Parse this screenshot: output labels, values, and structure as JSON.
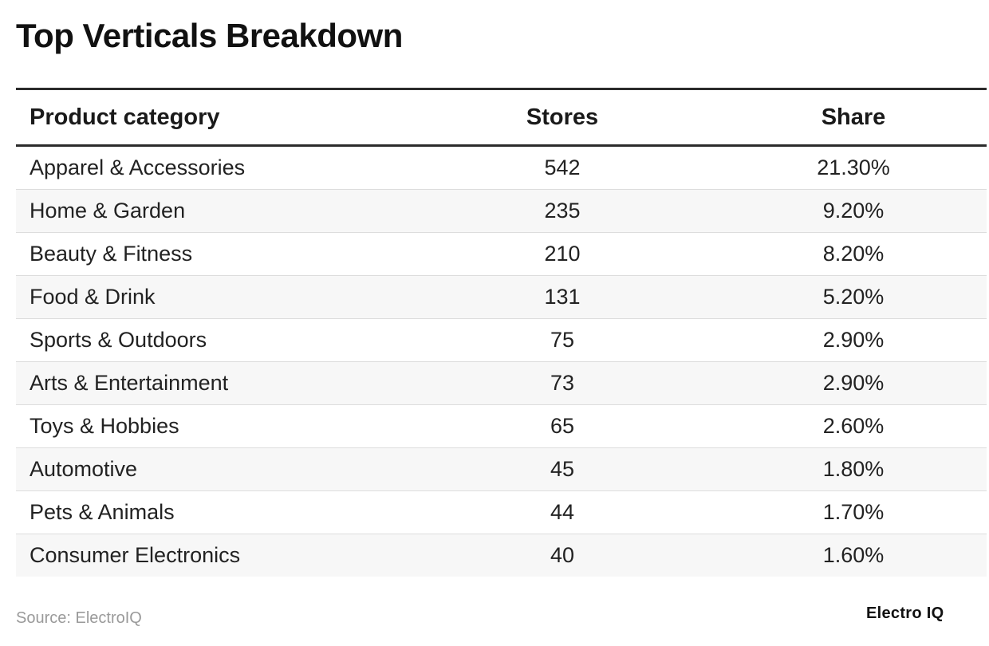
{
  "chart_data": {
    "type": "table",
    "title": "Top Verticals Breakdown",
    "columns": [
      "Product category",
      "Stores",
      "Share"
    ],
    "rows": [
      [
        "Apparel & Accessories",
        "542",
        "21.30%"
      ],
      [
        "Home & Garden",
        "235",
        "9.20%"
      ],
      [
        "Beauty & Fitness",
        "210",
        "8.20%"
      ],
      [
        "Food & Drink",
        "131",
        "5.20%"
      ],
      [
        "Sports & Outdoors",
        "75",
        "2.90%"
      ],
      [
        "Arts & Entertainment",
        "73",
        "2.90%"
      ],
      [
        "Toys & Hobbies",
        "65",
        "2.60%"
      ],
      [
        "Automotive",
        "45",
        "1.80%"
      ],
      [
        "Pets & Animals",
        "44",
        "1.70%"
      ],
      [
        "Consumer Electronics",
        "40",
        "1.60%"
      ]
    ]
  },
  "footer": {
    "source": "Source: ElectroIQ",
    "brand": "Electro IQ"
  }
}
